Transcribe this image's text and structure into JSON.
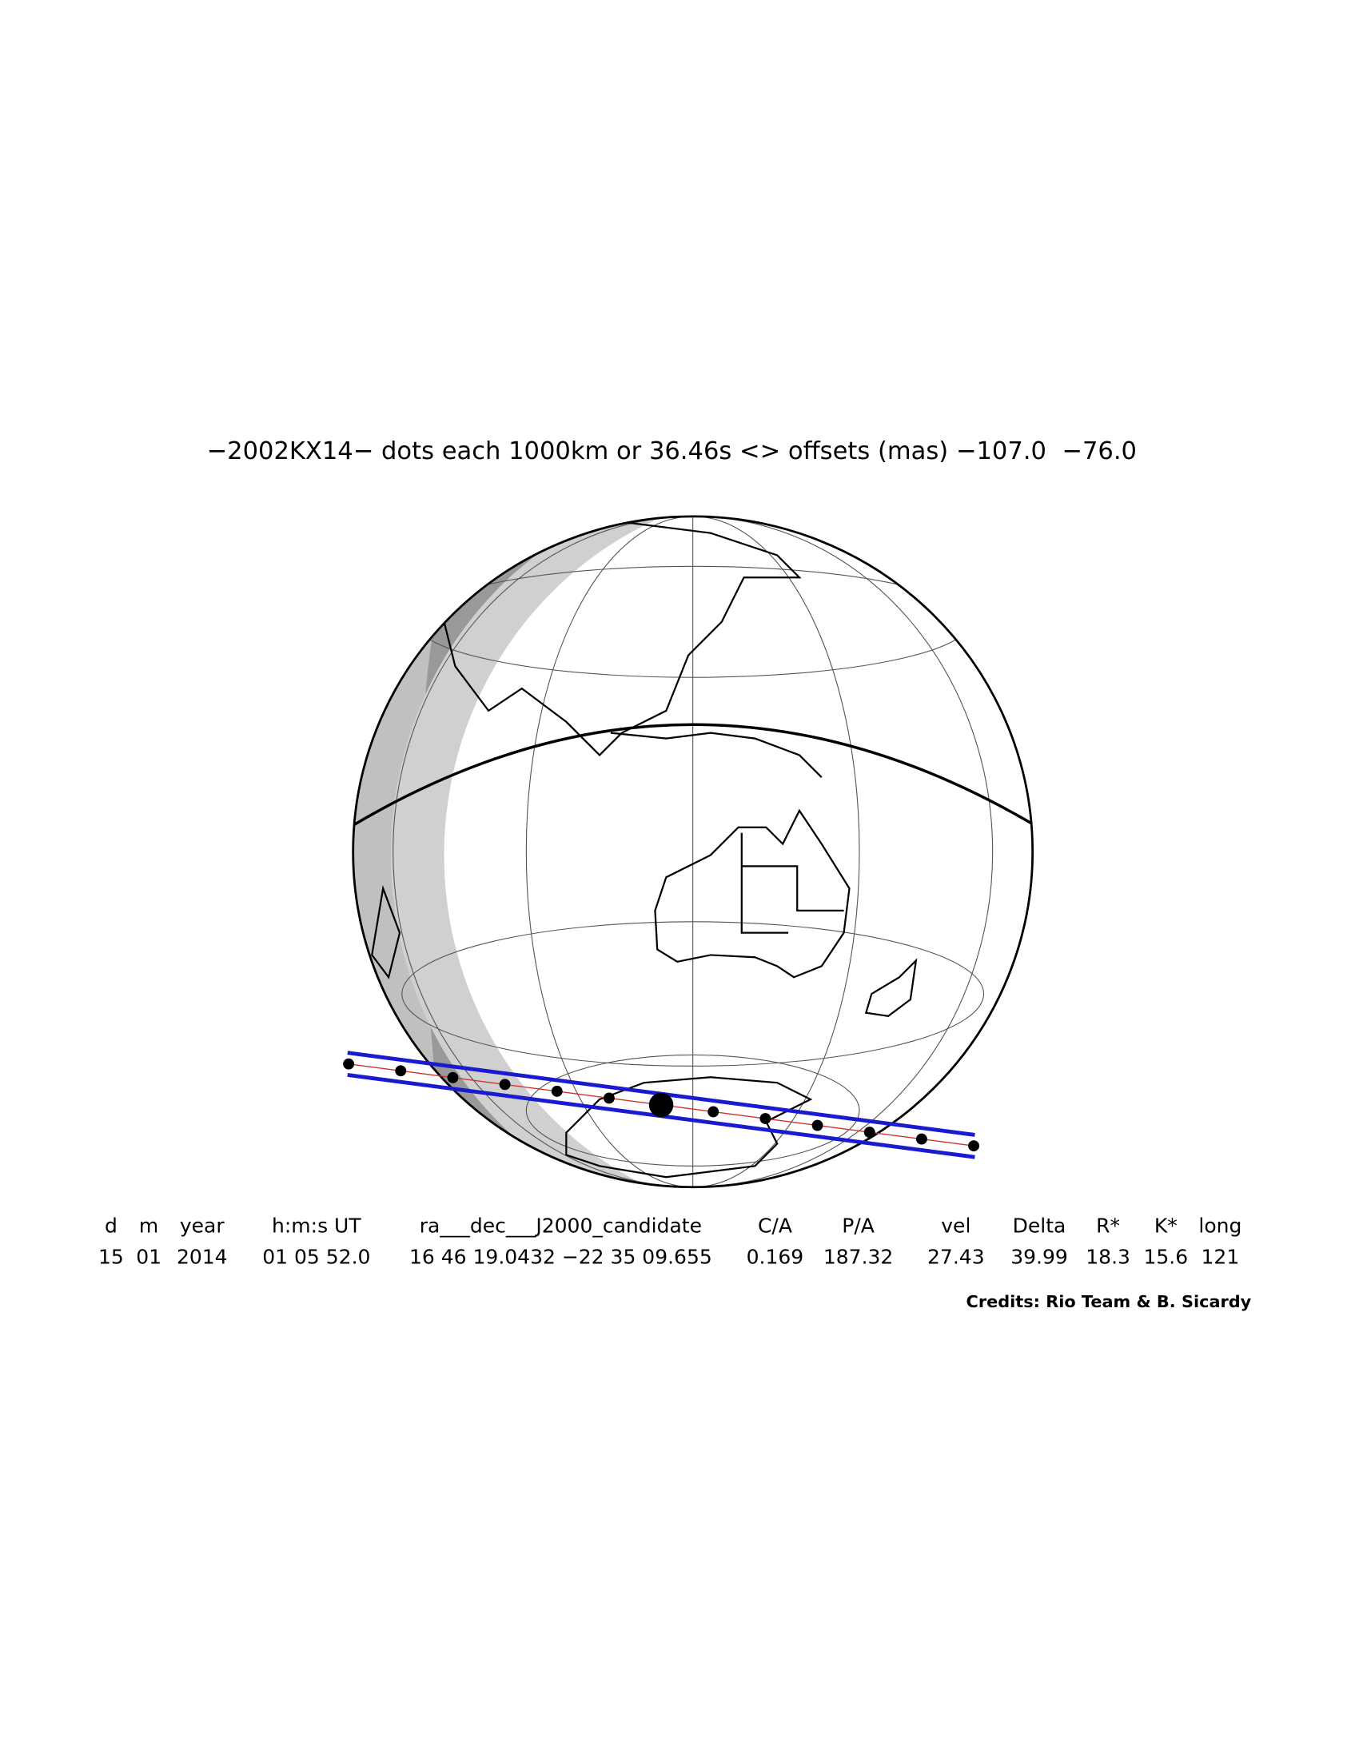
{
  "title": "−2002KX14− dots each 1000km or 36.46s <> offsets (mas) −107.0  −76.0",
  "table": {
    "header": [
      "d",
      "m",
      "year",
      "h:m:s UT",
      "ra___dec___J2000_candidate",
      "C/A",
      "P/A",
      "vel",
      "Delta",
      "R*",
      "K*",
      "long"
    ],
    "rows": [
      [
        "15",
        "01",
        "2014",
        "01 05 52.0",
        "16 46 19.0432 −22 35 09.655",
        "0.169",
        "187.32",
        "27.43",
        "39.99",
        "18.3",
        "15.6",
        "121"
      ]
    ]
  },
  "credits": "Credits: Rio Team & B. Sicardy"
}
